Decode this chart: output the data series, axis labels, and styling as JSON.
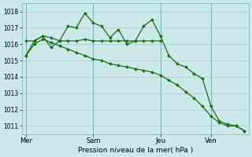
{
  "background_color": "#cce8e8",
  "grid_color": "#aacccc",
  "line_color": "#1a6b1a",
  "title": "Pression niveau de la mer( hPa )",
  "ylabel_ticks": [
    1011,
    1012,
    1013,
    1014,
    1015,
    1016,
    1017,
    1018
  ],
  "ylim": [
    1010.5,
    1018.5
  ],
  "day_labels": [
    "Mer",
    "Sam",
    "Jeu",
    "Ven"
  ],
  "day_positions": [
    0,
    8,
    16,
    22
  ],
  "xlim": [
    -0.5,
    26.5
  ],
  "series1_x": [
    0,
    1,
    2,
    3,
    4,
    5,
    6,
    7,
    8,
    9,
    10,
    11,
    12,
    13,
    14,
    15,
    16
  ],
  "series1_y": [
    1016.2,
    1016.2,
    1016.5,
    1016.4,
    1016.2,
    1016.2,
    1016.2,
    1016.3,
    1016.2,
    1016.2,
    1016.2,
    1016.2,
    1016.2,
    1016.2,
    1016.2,
    1016.2,
    1016.2
  ],
  "series2_x": [
    0,
    1,
    2,
    3,
    4,
    5,
    6,
    7,
    8,
    9,
    10,
    11,
    12,
    13,
    14,
    15,
    16,
    17,
    18,
    19,
    20,
    21,
    22,
    23,
    24,
    25,
    26
  ],
  "series2_y": [
    1015.3,
    1016.2,
    1016.5,
    1015.8,
    1016.2,
    1017.1,
    1017.0,
    1017.9,
    1017.3,
    1017.1,
    1016.4,
    1016.9,
    1016.0,
    1016.2,
    1017.1,
    1017.5,
    1016.5,
    1015.3,
    1014.8,
    1014.6,
    1014.2,
    1013.9,
    1012.2,
    1011.3,
    1011.1,
    1011.0,
    1010.7
  ],
  "series3_x": [
    0,
    1,
    2,
    3,
    4,
    5,
    6,
    7,
    8,
    9,
    10,
    11,
    12,
    13,
    14,
    15,
    16,
    17,
    18,
    19,
    20,
    21,
    22,
    23,
    24,
    25,
    26
  ],
  "series3_y": [
    1015.3,
    1016.0,
    1016.3,
    1016.1,
    1015.9,
    1015.7,
    1015.5,
    1015.3,
    1015.1,
    1015.0,
    1014.8,
    1014.7,
    1014.6,
    1014.5,
    1014.4,
    1014.3,
    1014.1,
    1013.8,
    1013.5,
    1013.1,
    1012.7,
    1012.2,
    1011.6,
    1011.2,
    1011.0,
    1011.0,
    1010.7
  ]
}
